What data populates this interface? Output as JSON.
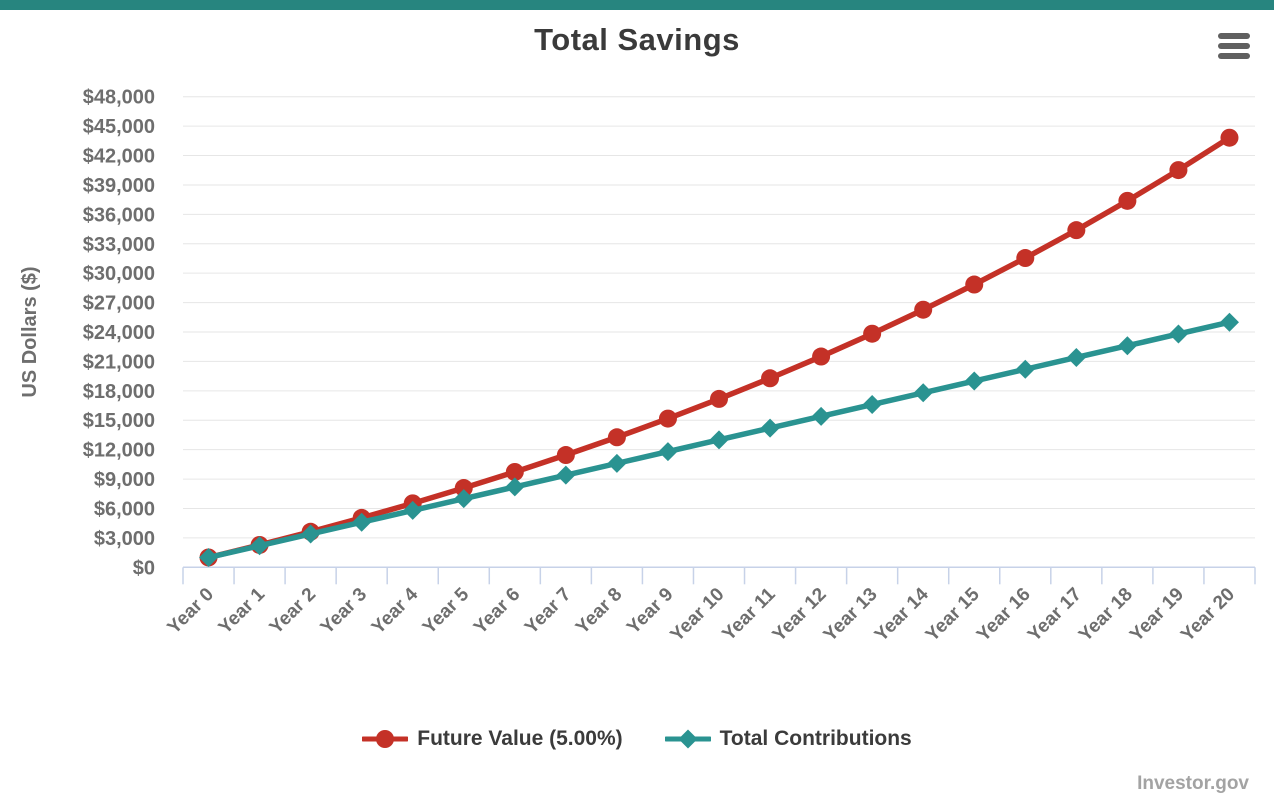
{
  "header": {
    "title": "Total Savings"
  },
  "footer": {
    "watermark": "Investor.gov"
  },
  "colors": {
    "banner": "#27857f",
    "title_text": "#3a3a3a",
    "menu_icon": "#606060",
    "grid": "#e6e6e6",
    "axis": "#c7d2e8",
    "axis_label": "#6e6e6e",
    "legend_text": "#3b3b3b",
    "watermark_text": "#a3a3a3"
  },
  "chart_data": {
    "type": "line",
    "title": "Total Savings",
    "xlabel": "",
    "ylabel": "US Dollars ($)",
    "ylim": [
      0,
      48000
    ],
    "ytick_step": 3000,
    "ytick_labels": [
      "$0",
      "$3,000",
      "$6,000",
      "$9,000",
      "$12,000",
      "$15,000",
      "$18,000",
      "$21,000",
      "$24,000",
      "$27,000",
      "$30,000",
      "$33,000",
      "$36,000",
      "$39,000",
      "$42,000",
      "$45,000",
      "$48,000"
    ],
    "categories": [
      "Year 0",
      "Year 1",
      "Year 2",
      "Year 3",
      "Year 4",
      "Year 5",
      "Year 6",
      "Year 7",
      "Year 8",
      "Year 9",
      "Year 10",
      "Year 11",
      "Year 12",
      "Year 13",
      "Year 14",
      "Year 15",
      "Year 16",
      "Year 17",
      "Year 18",
      "Year 19",
      "Year 20"
    ],
    "grid": true,
    "legend_position": "bottom",
    "series": [
      {
        "name": "Future Value (5.00%)",
        "color": "#c43127",
        "marker": "circle",
        "values": [
          1000,
          2279,
          3624,
          5037,
          6522,
          8084,
          9725,
          11451,
          13264,
          15169,
          17175,
          19282,
          21496,
          23824,
          26271,
          28843,
          31546,
          34388,
          37375,
          40516,
          43816
        ]
      },
      {
        "name": "Total Contributions",
        "color": "#2a9391",
        "marker": "diamond",
        "values": [
          1000,
          2200,
          3400,
          4600,
          5800,
          7000,
          8200,
          9400,
          10600,
          11800,
          13000,
          14200,
          15400,
          16600,
          17800,
          19000,
          20200,
          21400,
          22600,
          23800,
          25000
        ]
      }
    ]
  }
}
